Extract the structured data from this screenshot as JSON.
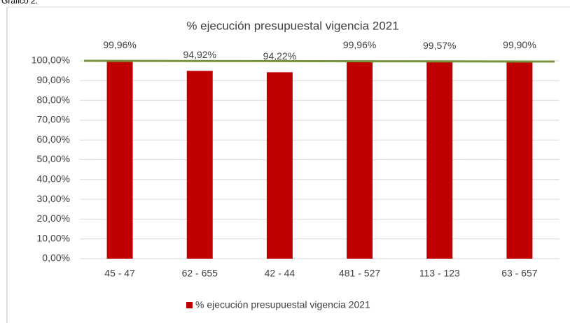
{
  "caption": "Gráfico 2.",
  "chart_data": {
    "type": "bar",
    "title": "% ejecución presupuestal vigencia 2021",
    "categories": [
      "45 - 47",
      "62 - 655",
      "42 - 44",
      "481 - 527",
      "113 - 123",
      "63 - 657"
    ],
    "series": [
      {
        "name": "% ejecución presupuestal vigencia 2021",
        "color": "#c00000",
        "values": [
          99.96,
          94.92,
          94.22,
          99.96,
          99.57,
          99.9
        ],
        "value_labels": [
          "99,96%",
          "94,92%",
          "94,22%",
          "99,96%",
          "99,57%",
          "99,90%"
        ]
      }
    ],
    "ylim": [
      0,
      100
    ],
    "yticks": [
      {
        "value": 0,
        "label": "0,00%"
      },
      {
        "value": 10,
        "label": "10,00%"
      },
      {
        "value": 20,
        "label": "20,00%"
      },
      {
        "value": 30,
        "label": "30,00%"
      },
      {
        "value": 40,
        "label": "40,00%"
      },
      {
        "value": 50,
        "label": "50,00%"
      },
      {
        "value": 60,
        "label": "60,00%"
      },
      {
        "value": 70,
        "label": "70,00%"
      },
      {
        "value": 80,
        "label": "80,00%"
      },
      {
        "value": 90,
        "label": "90,00%"
      },
      {
        "value": 100,
        "label": "100,00%"
      }
    ],
    "grid": true,
    "legend": "bottom"
  }
}
